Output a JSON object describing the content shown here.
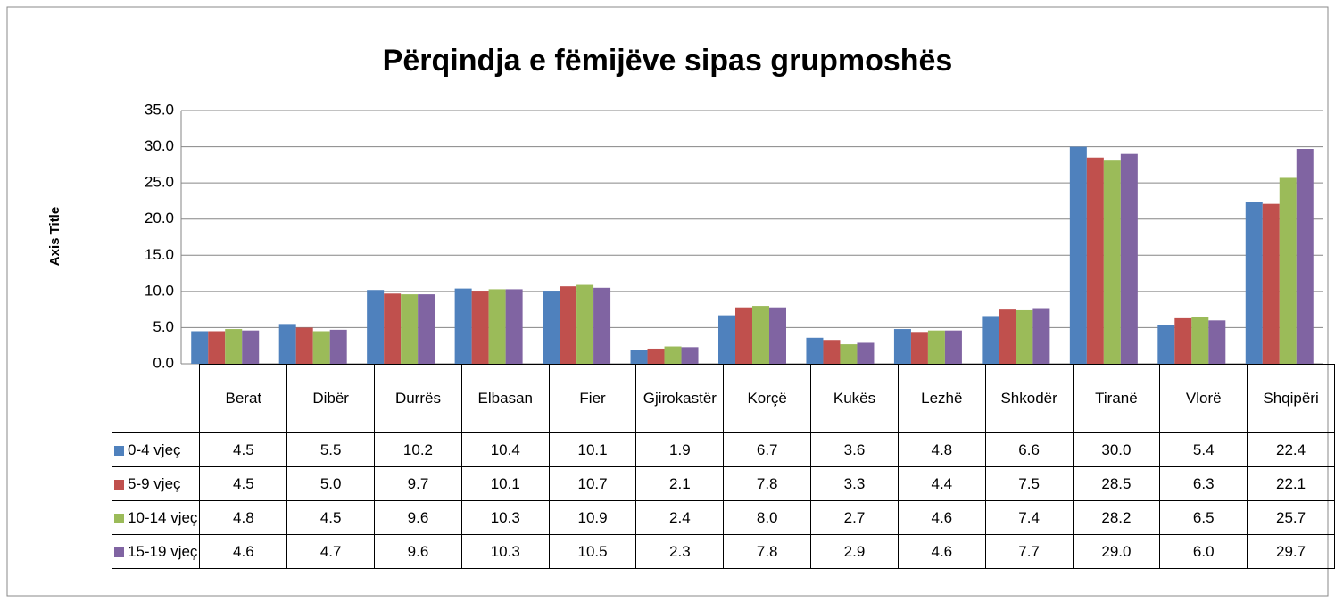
{
  "chart_data": {
    "type": "bar",
    "title": "Përqindja e fëmijëve sipas grupmoshës",
    "y_axis_label": "Axis Title",
    "categories": [
      "Berat",
      "Dibër",
      "Durrës",
      "Elbasan",
      "Fier",
      "Gjirokastër",
      "Korçë",
      "Kukës",
      "Lezhë",
      "Shkodër",
      "Tiranë",
      "Vlorë",
      "Shqipëri"
    ],
    "series": [
      {
        "name": "0-4 vjeç",
        "color": "#4f81bd",
        "values": [
          4.5,
          5.5,
          10.2,
          10.4,
          10.1,
          1.9,
          6.7,
          3.6,
          4.8,
          6.6,
          30.0,
          5.4,
          22.4
        ],
        "value_labels": [
          "4.5",
          "5.5",
          "10.2",
          "10.4",
          "10.1",
          "1.9",
          "6.7",
          "3.6",
          "4.8",
          "6.6",
          "30.0",
          "5.4",
          "22.4"
        ]
      },
      {
        "name": "5-9 vjeç",
        "color": "#c0504d",
        "values": [
          4.5,
          5.0,
          9.7,
          10.1,
          10.7,
          2.1,
          7.8,
          3.3,
          4.4,
          7.5,
          28.5,
          6.3,
          22.1
        ],
        "value_labels": [
          "4.5",
          "5.0",
          "9.7",
          "10.1",
          "10.7",
          "2.1",
          "7.8",
          "3.3",
          "4.4",
          "7.5",
          "28.5",
          "6.3",
          "22.1"
        ]
      },
      {
        "name": "10-14 vjeç",
        "color": "#9bbb59",
        "values": [
          4.8,
          4.5,
          9.6,
          10.3,
          10.9,
          2.4,
          8.0,
          2.7,
          4.6,
          7.4,
          28.2,
          6.5,
          25.7
        ],
        "value_labels": [
          "4.8",
          "4.5",
          "9.6",
          "10.3",
          "10.9",
          "2.4",
          "8.0",
          "2.7",
          "4.6",
          "7.4",
          "28.2",
          "6.5",
          "25.7"
        ]
      },
      {
        "name": "15-19 vjeç",
        "color": "#8064a2",
        "values": [
          4.6,
          4.7,
          9.6,
          10.3,
          10.5,
          2.3,
          7.8,
          2.9,
          4.6,
          7.7,
          29.0,
          6.0,
          29.7
        ],
        "value_labels": [
          "4.6",
          "4.7",
          "9.6",
          "10.3",
          "10.5",
          "2.3",
          "7.8",
          "2.9",
          "4.6",
          "7.7",
          "29.0",
          "6.0",
          "29.7"
        ]
      }
    ],
    "ylim": [
      0,
      35
    ],
    "yticks": [
      {
        "value": 0,
        "label": "0.0"
      },
      {
        "value": 5,
        "label": "5.0"
      },
      {
        "value": 10,
        "label": "10.0"
      },
      {
        "value": 15,
        "label": "15.0"
      },
      {
        "value": 20,
        "label": "20.0"
      },
      {
        "value": 25,
        "label": "25.0"
      },
      {
        "value": 30,
        "label": "30.0"
      },
      {
        "value": 35,
        "label": "35.0"
      }
    ],
    "grid": true,
    "legend": "data-table"
  }
}
